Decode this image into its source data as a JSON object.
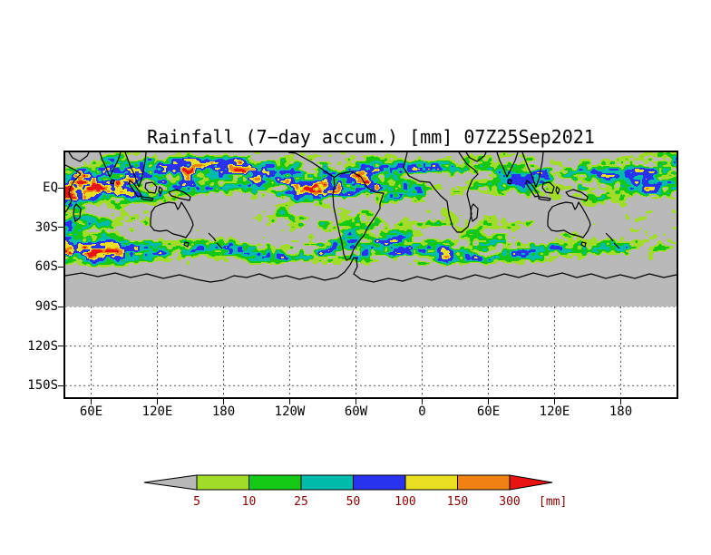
{
  "title": "Rainfall (7−day accum.) [mm] 07Z25Sep2021",
  "axes": {
    "y_ticks": [
      "EQ",
      "30S",
      "60S",
      "90S",
      "120S",
      "150S"
    ],
    "x_ticks": [
      "60E",
      "120E",
      "180",
      "120W",
      "60W",
      "0",
      "60E",
      "120E",
      "180"
    ]
  },
  "map": {
    "no_data_color": "#b9b9b9",
    "coastline_color": "#000000",
    "gridline_color": "#555555"
  },
  "colorbar": {
    "labels": [
      "5",
      "10",
      "25",
      "50",
      "100",
      "150",
      "300"
    ],
    "unit_label": "[mm]",
    "label_color": "#8b0000",
    "below_color": "#b9b9b9",
    "segment_colors": [
      "#a0dc28",
      "#14c814",
      "#00bcac",
      "#2832f0",
      "#e8e020",
      "#f08214"
    ],
    "above_color": "#e81414"
  },
  "chart_data": {
    "type": "heatmap",
    "title": "Rainfall (7−day accum.) [mm] 07Z25Sep2021",
    "variable": "7-day accumulated rainfall",
    "unit": "mm",
    "valid_time_label": "07Z25Sep2021",
    "color_levels_mm": [
      5,
      10,
      25,
      50,
      100,
      150,
      300
    ],
    "level_colors": [
      "#b9b9b9",
      "#a0dc28",
      "#14c814",
      "#00bcac",
      "#2832f0",
      "#e8e020",
      "#f08214",
      "#e81414"
    ],
    "x_axis": {
      "tick_labels": [
        "60E",
        "120E",
        "180",
        "120W",
        "60W",
        "0",
        "60E",
        "120E",
        "180"
      ]
    },
    "y_axis": {
      "tick_labels": [
        "EQ",
        "30S",
        "60S",
        "90S",
        "120S",
        "150S"
      ]
    },
    "legend_position": "bottom",
    "grid": "dashed",
    "qualitative_pattern": [
      {
        "region": "tropics (top of map to ~10S)",
        "rainfall": "widespread 25-100 mm with embedded cells of 150-300+ mm (yellow/orange/red specks)"
      },
      {
        "region": "subtropics (~15S-30S)",
        "rainfall": "scattered light totals of 5-25 mm"
      },
      {
        "region": "southern storm track (~35S-60S)",
        "rainfall": "zonal streaks of 5-50 mm, locally near 100 mm"
      },
      {
        "region": "poleward of ~65S and below the 90S line",
        "rainfall": "below 5 mm / no data (gray), white south of 90S"
      }
    ]
  }
}
